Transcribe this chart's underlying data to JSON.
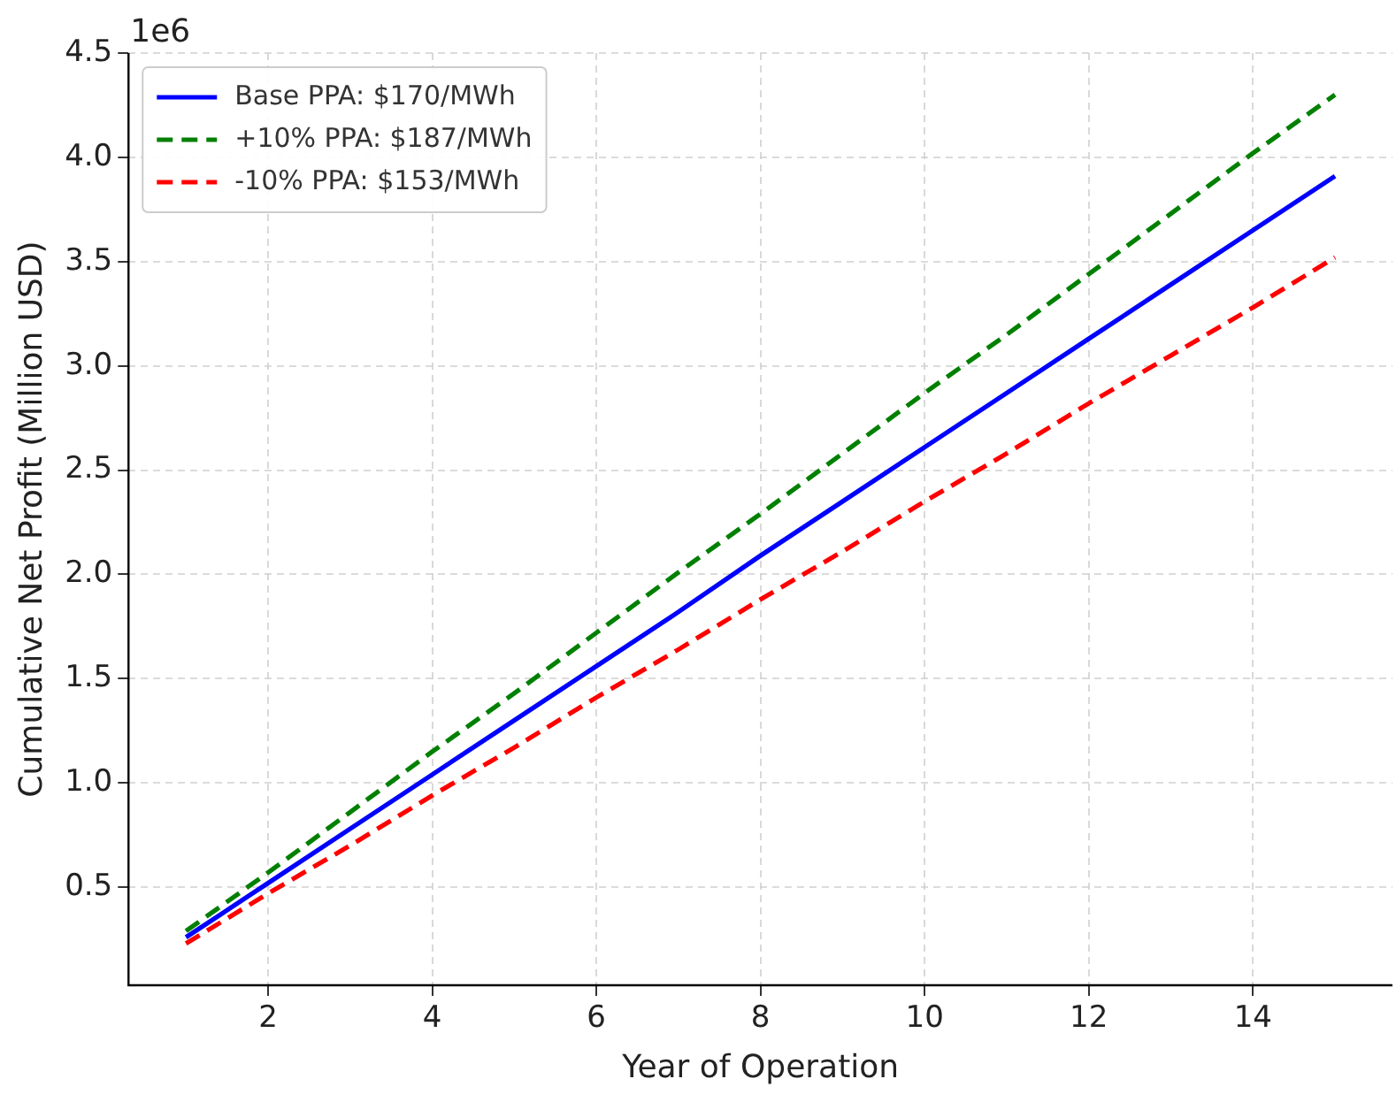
{
  "chart_data": {
    "type": "line",
    "xlabel": "Year of Operation",
    "ylabel": "Cumulative Net Profit (Million USD)",
    "annotations": [
      "1e6"
    ],
    "x": [
      1,
      2,
      3,
      4,
      5,
      6,
      7,
      8,
      9,
      10,
      11,
      12,
      13,
      14,
      15
    ],
    "series": [
      {
        "name": "Base PPA: $170/MWh",
        "color": "#0000ff",
        "line_style": "solid",
        "values": [
          0.26,
          0.52,
          0.78,
          1.04,
          1.3,
          1.56,
          1.82,
          2.09,
          2.35,
          2.61,
          2.87,
          3.13,
          3.39,
          3.65,
          3.91
        ]
      },
      {
        "name": "+10% PPA: $187/MWh",
        "color": "#008000",
        "line_style": "dashed",
        "values": [
          0.29,
          0.57,
          0.86,
          1.15,
          1.43,
          1.72,
          2.01,
          2.29,
          2.58,
          2.87,
          3.15,
          3.44,
          3.73,
          4.02,
          4.3
        ]
      },
      {
        "name": "-10% PPA: $153/MWh",
        "color": "#ff0000",
        "line_style": "dashed",
        "values": [
          0.23,
          0.47,
          0.7,
          0.94,
          1.17,
          1.41,
          1.64,
          1.88,
          2.11,
          2.35,
          2.58,
          2.82,
          3.05,
          3.28,
          3.52
        ]
      }
    ],
    "xlim": [
      0.3,
      15.7
    ],
    "xticks": [
      2,
      4,
      6,
      8,
      10,
      12,
      14
    ],
    "ylim": [
      0.03,
      4.5
    ],
    "yticks": [
      0.5,
      {
        "value": 1,
        "label": "1.0"
      },
      1.5,
      {
        "value": 2,
        "label": "2.0"
      },
      2.5,
      {
        "value": 3,
        "label": "3.0"
      },
      3.5,
      {
        "value": 4,
        "label": "4.0"
      },
      4.5
    ],
    "grid": true,
    "legend": "top left",
    "marker": "none"
  }
}
